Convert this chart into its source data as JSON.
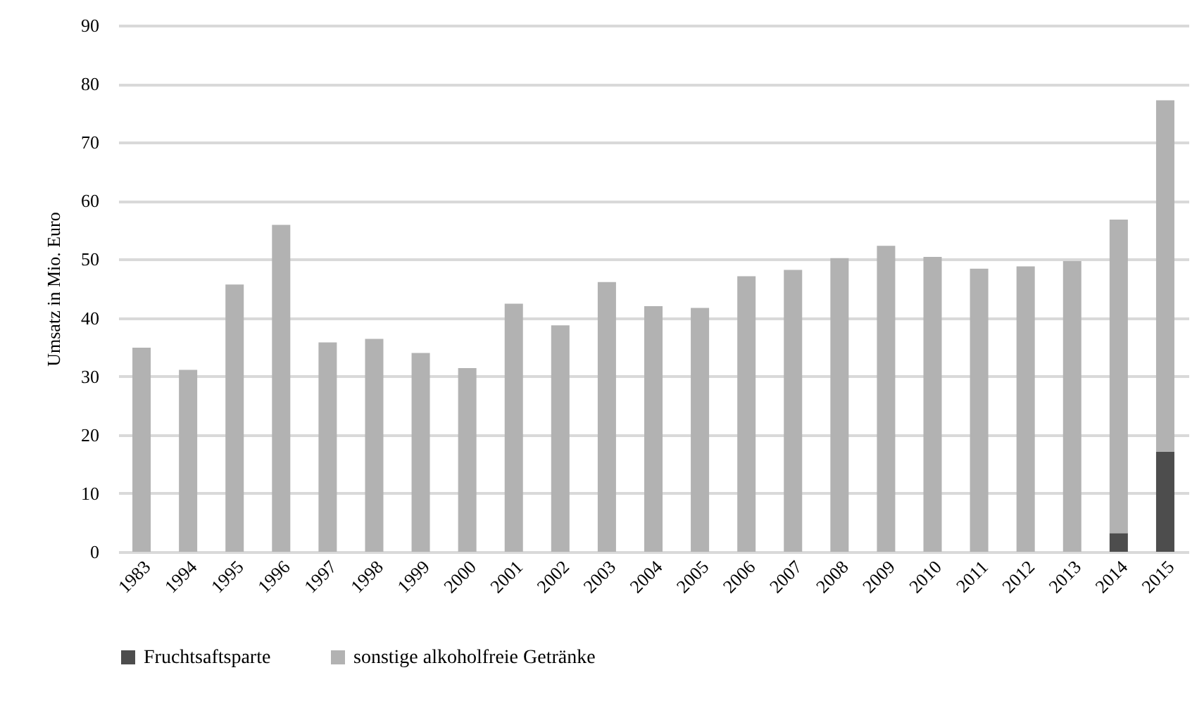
{
  "chart_data": {
    "type": "bar",
    "stacked": true,
    "ylabel": "Umsatz in Mio. Euro",
    "categories": [
      "1983",
      "1994",
      "1995",
      "1996",
      "1997",
      "1998",
      "1999",
      "2000",
      "2001",
      "2002",
      "2003",
      "2004",
      "2005",
      "2006",
      "2007",
      "2008",
      "2009",
      "2010",
      "2011",
      "2012",
      "2013",
      "2014",
      "2015"
    ],
    "series": [
      {
        "name": "Fruchtsaftsparte",
        "color": "#4d4d4d",
        "values": [
          null,
          null,
          null,
          null,
          null,
          null,
          null,
          null,
          null,
          null,
          null,
          null,
          null,
          null,
          null,
          null,
          null,
          null,
          null,
          null,
          null,
          3.2,
          17.1
        ]
      },
      {
        "name": "sonstige alkoholfreie Getränke",
        "color": "#b2b2b2",
        "values": [
          34.9,
          31.1,
          45.7,
          55.9,
          35.8,
          36.4,
          34.0,
          31.4,
          42.4,
          38.7,
          46.1,
          42.0,
          41.7,
          47.1,
          48.2,
          50.2,
          52.3,
          50.4,
          48.4,
          48.8,
          49.7,
          53.6,
          60.1
        ]
      }
    ],
    "ylim": [
      0,
      90
    ],
    "yticks": [
      0,
      10,
      20,
      30,
      40,
      50,
      60,
      70,
      80,
      90
    ],
    "grid": "y",
    "legend": "bottom"
  }
}
